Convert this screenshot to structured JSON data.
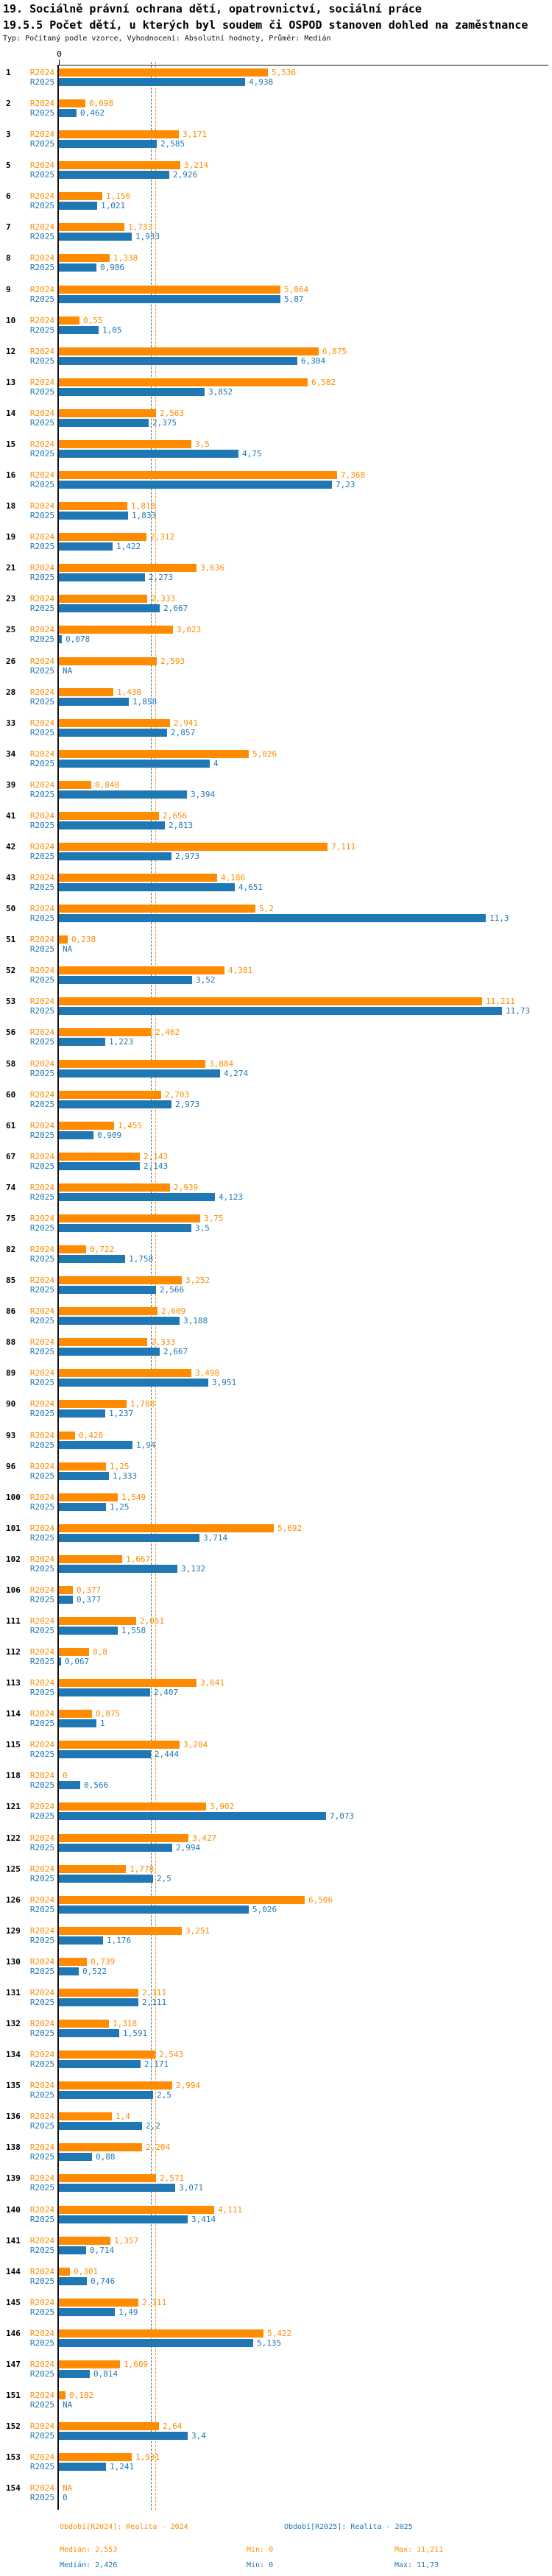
{
  "header": {
    "title1": "19. Sociálně právní ochrana dětí, opatrovnictví, sociální práce",
    "title2": "19.5.5 Počet dětí, u kterých byl soudem či OSPOD stanoven dohled na zaměstnance",
    "meta": "Typ: Počítaný podle vzorce, Vyhodnocení: Absolutní hodnoty, Průměr: Medián"
  },
  "chart_data": {
    "type": "bar",
    "orientation": "horizontal",
    "title": "19.5.5 Počet dětí, u kterých byl soudem či OSPOD stanoven dohled na zaměstnance",
    "axis": {
      "zero_label": "0",
      "min": 0
    },
    "na_label": "NA",
    "grid": "off",
    "series": [
      {
        "key": "r2024",
        "label": "R2024",
        "color": "#ff8c00",
        "period_label": "Období[R2024]: Realita - 2024",
        "median": "2,553",
        "min": "0",
        "max": "11,211"
      },
      {
        "key": "r2025",
        "label": "R2025",
        "color": "#1f77b4",
        "period_label": "Období[R2025]: Realita - 2025",
        "median": "2,426",
        "min": "0",
        "max": "11,73"
      }
    ],
    "stat_labels": {
      "median": "Medián",
      "min": "Min",
      "max": "Max"
    },
    "rows": [
      {
        "id": "1",
        "r2024": "5,536",
        "r2025": "4,938"
      },
      {
        "id": "2",
        "r2024": "0,698",
        "r2025": "0,462"
      },
      {
        "id": "3",
        "r2024": "3,171",
        "r2025": "2,585"
      },
      {
        "id": "5",
        "r2024": "3,214",
        "r2025": "2,926"
      },
      {
        "id": "6",
        "r2024": "1,156",
        "r2025": "1,021"
      },
      {
        "id": "7",
        "r2024": "1,733",
        "r2025": "1,933"
      },
      {
        "id": "8",
        "r2024": "1,338",
        "r2025": "0,986"
      },
      {
        "id": "9",
        "r2024": "5,864",
        "r2025": "5,87"
      },
      {
        "id": "10",
        "r2024": "0,55",
        "r2025": "1,05"
      },
      {
        "id": "12",
        "r2024": "6,875",
        "r2025": "6,304"
      },
      {
        "id": "13",
        "r2024": "6,582",
        "r2025": "3,852"
      },
      {
        "id": "14",
        "r2024": "2,563",
        "r2025": "2,375"
      },
      {
        "id": "15",
        "r2024": "3,5",
        "r2025": "4,75"
      },
      {
        "id": "16",
        "r2024": "7,368",
        "r2025": "7,23"
      },
      {
        "id": "18",
        "r2024": "1,818",
        "r2025": "1,833"
      },
      {
        "id": "19",
        "r2024": "2,312",
        "r2025": "1,422"
      },
      {
        "id": "21",
        "r2024": "3,636",
        "r2025": "2,273"
      },
      {
        "id": "23",
        "r2024": "2,333",
        "r2025": "2,667"
      },
      {
        "id": "25",
        "r2024": "3,023",
        "r2025": "0,078"
      },
      {
        "id": "26",
        "r2024": "2,593",
        "r2025": "NA"
      },
      {
        "id": "28",
        "r2024": "1,438",
        "r2025": "1,858"
      },
      {
        "id": "33",
        "r2024": "2,941",
        "r2025": "2,857"
      },
      {
        "id": "34",
        "r2024": "5,026",
        "r2025": "4"
      },
      {
        "id": "39",
        "r2024": "0,848",
        "r2025": "3,394"
      },
      {
        "id": "41",
        "r2024": "2,656",
        "r2025": "2,813"
      },
      {
        "id": "42",
        "r2024": "7,111",
        "r2025": "2,973"
      },
      {
        "id": "43",
        "r2024": "4,186",
        "r2025": "4,651"
      },
      {
        "id": "50",
        "r2024": "5,2",
        "r2025": "11,3"
      },
      {
        "id": "51",
        "r2024": "0,238",
        "r2025": "NA"
      },
      {
        "id": "52",
        "r2024": "4,381",
        "r2025": "3,52"
      },
      {
        "id": "53",
        "r2024": "11,211",
        "r2025": "11,73"
      },
      {
        "id": "56",
        "r2024": "2,462",
        "r2025": "1,223"
      },
      {
        "id": "58",
        "r2024": "3,884",
        "r2025": "4,274"
      },
      {
        "id": "60",
        "r2024": "2,703",
        "r2025": "2,973"
      },
      {
        "id": "61",
        "r2024": "1,455",
        "r2025": "0,909"
      },
      {
        "id": "67",
        "r2024": "2,143",
        "r2025": "2,143"
      },
      {
        "id": "74",
        "r2024": "2,939",
        "r2025": "4,123"
      },
      {
        "id": "75",
        "r2024": "3,75",
        "r2025": "3,5"
      },
      {
        "id": "82",
        "r2024": "0,722",
        "r2025": "1,758"
      },
      {
        "id": "85",
        "r2024": "3,252",
        "r2025": "2,566"
      },
      {
        "id": "86",
        "r2024": "2,609",
        "r2025": "3,188"
      },
      {
        "id": "88",
        "r2024": "2,333",
        "r2025": "2,667"
      },
      {
        "id": "89",
        "r2024": "3,498",
        "r2025": "3,951"
      },
      {
        "id": "90",
        "r2024": "1,788",
        "r2025": "1,237"
      },
      {
        "id": "93",
        "r2024": "0,428",
        "r2025": "1,94"
      },
      {
        "id": "96",
        "r2024": "1,25",
        "r2025": "1,333"
      },
      {
        "id": "100",
        "r2024": "1,549",
        "r2025": "1,25"
      },
      {
        "id": "101",
        "r2024": "5,692",
        "r2025": "3,714"
      },
      {
        "id": "102",
        "r2024": "1,667",
        "r2025": "3,132"
      },
      {
        "id": "106",
        "r2024": "0,377",
        "r2025": "0,377"
      },
      {
        "id": "111",
        "r2024": "2,051",
        "r2025": "1,558"
      },
      {
        "id": "112",
        "r2024": "0,8",
        "r2025": "0,067"
      },
      {
        "id": "113",
        "r2024": "3,641",
        "r2025": "2,407"
      },
      {
        "id": "114",
        "r2024": "0,875",
        "r2025": "1"
      },
      {
        "id": "115",
        "r2024": "3,204",
        "r2025": "2,444"
      },
      {
        "id": "118",
        "r2024": "0",
        "r2025": "0,566"
      },
      {
        "id": "121",
        "r2024": "3,902",
        "r2025": "7,073"
      },
      {
        "id": "122",
        "r2024": "3,427",
        "r2025": "2,994"
      },
      {
        "id": "125",
        "r2024": "1,778",
        "r2025": "2,5"
      },
      {
        "id": "126",
        "r2024": "6,506",
        "r2025": "5,026"
      },
      {
        "id": "129",
        "r2024": "3,251",
        "r2025": "1,176"
      },
      {
        "id": "130",
        "r2024": "0,739",
        "r2025": "0,522"
      },
      {
        "id": "131",
        "r2024": "2,111",
        "r2025": "2,111"
      },
      {
        "id": "132",
        "r2024": "1,318",
        "r2025": "1,591"
      },
      {
        "id": "134",
        "r2024": "2,543",
        "r2025": "2,171"
      },
      {
        "id": "135",
        "r2024": "2,994",
        "r2025": "2,5"
      },
      {
        "id": "136",
        "r2024": "1,4",
        "r2025": "2,2"
      },
      {
        "id": "138",
        "r2024": "2,204",
        "r2025": "0,88"
      },
      {
        "id": "139",
        "r2024": "2,571",
        "r2025": "3,071"
      },
      {
        "id": "140",
        "r2024": "4,111",
        "r2025": "3,414"
      },
      {
        "id": "141",
        "r2024": "1,357",
        "r2025": "0,714"
      },
      {
        "id": "144",
        "r2024": "0,301",
        "r2025": "0,746"
      },
      {
        "id": "145",
        "r2024": "2,111",
        "r2025": "1,49"
      },
      {
        "id": "146",
        "r2024": "5,422",
        "r2025": "5,135"
      },
      {
        "id": "147",
        "r2024": "1,609",
        "r2025": "0,814"
      },
      {
        "id": "151",
        "r2024": "0,182",
        "r2025": "NA"
      },
      {
        "id": "152",
        "r2024": "2,64",
        "r2025": "3,4"
      },
      {
        "id": "153",
        "r2024": "1,931",
        "r2025": "1,241"
      },
      {
        "id": "154",
        "r2024": "NA",
        "r2025": "0"
      }
    ]
  }
}
